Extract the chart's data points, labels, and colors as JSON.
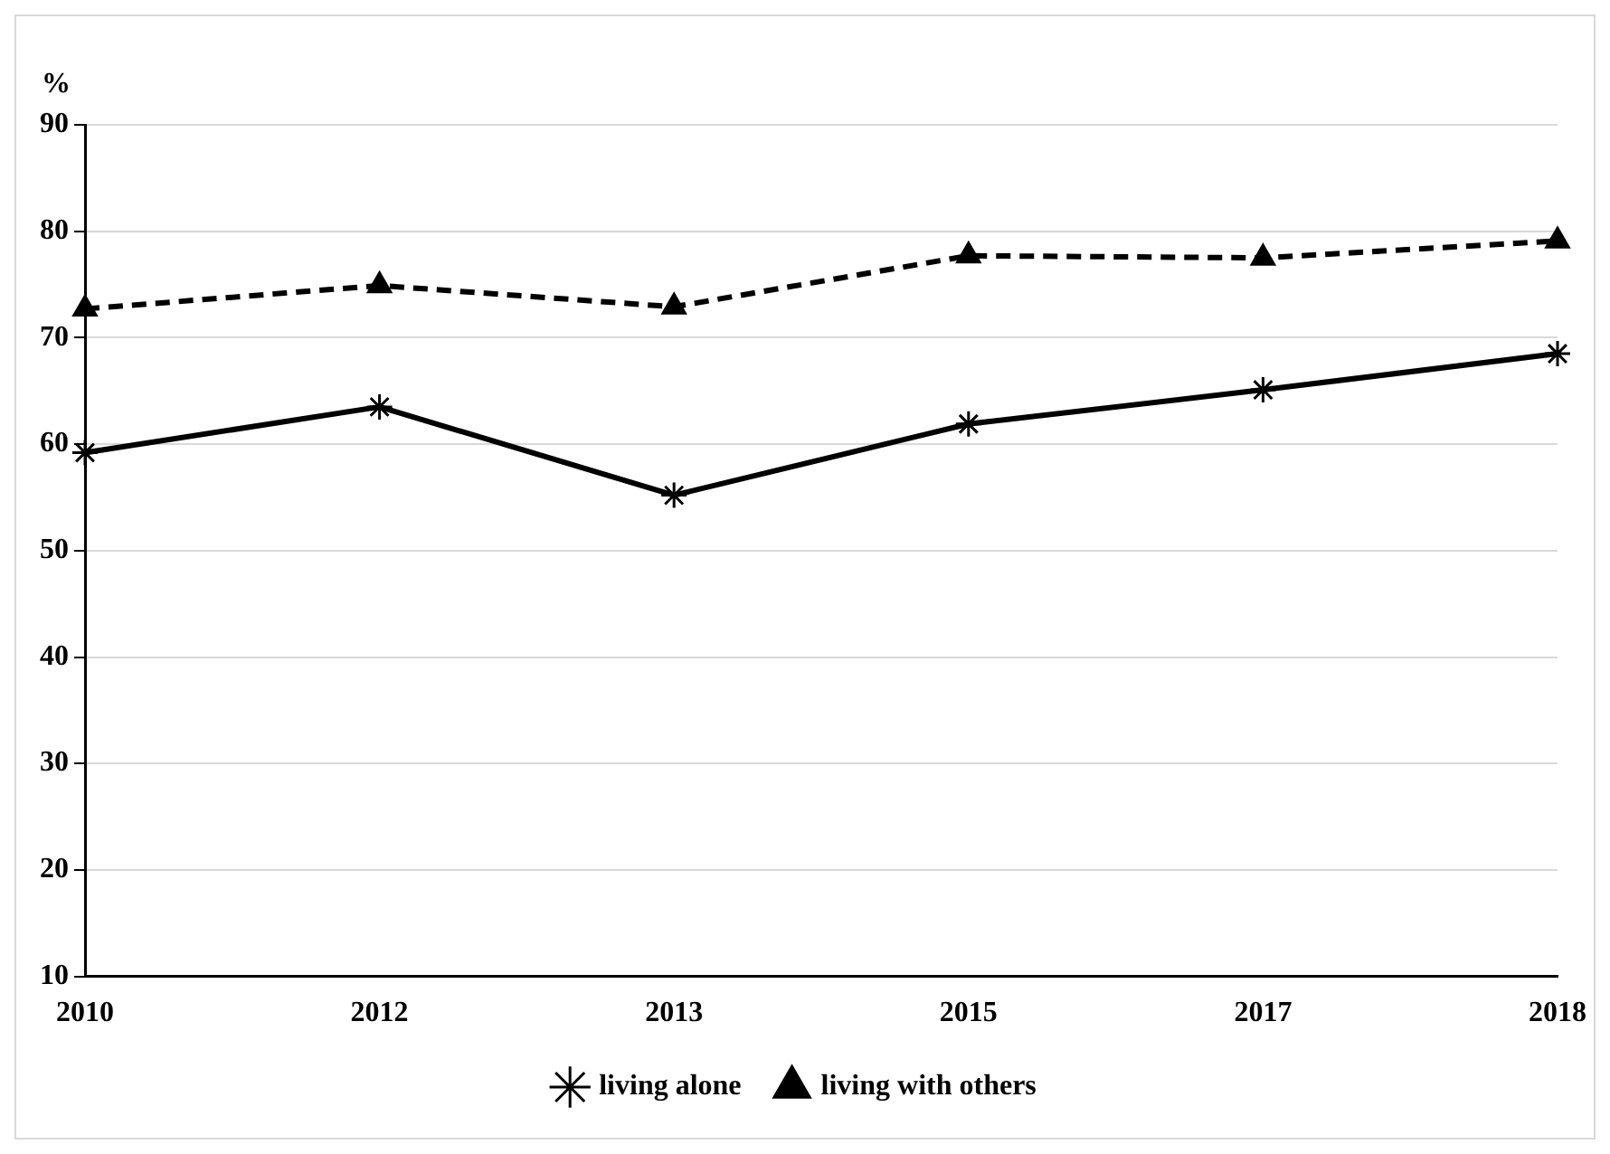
{
  "chart_data": {
    "type": "line",
    "ylabel": "%",
    "categories": [
      "2010",
      "2012",
      "2013",
      "2015",
      "2017",
      "2018"
    ],
    "series": [
      {
        "name": "living alone",
        "color": "#000000",
        "marker": "cross",
        "line_style": "solid",
        "values": [
          59.2,
          63.5,
          55.2,
          61.9,
          65.1,
          68.5
        ]
      },
      {
        "name": "living with others",
        "color": "#000000",
        "marker": "triangle",
        "line_style": "dashed",
        "values": [
          72.7,
          74.9,
          72.9,
          77.7,
          77.5,
          79.1
        ]
      }
    ],
    "ylim": [
      10,
      90
    ],
    "yticks": [
      10,
      20,
      30,
      40,
      50,
      60,
      70,
      80,
      90
    ],
    "grid": "y",
    "legend": "bottom"
  }
}
